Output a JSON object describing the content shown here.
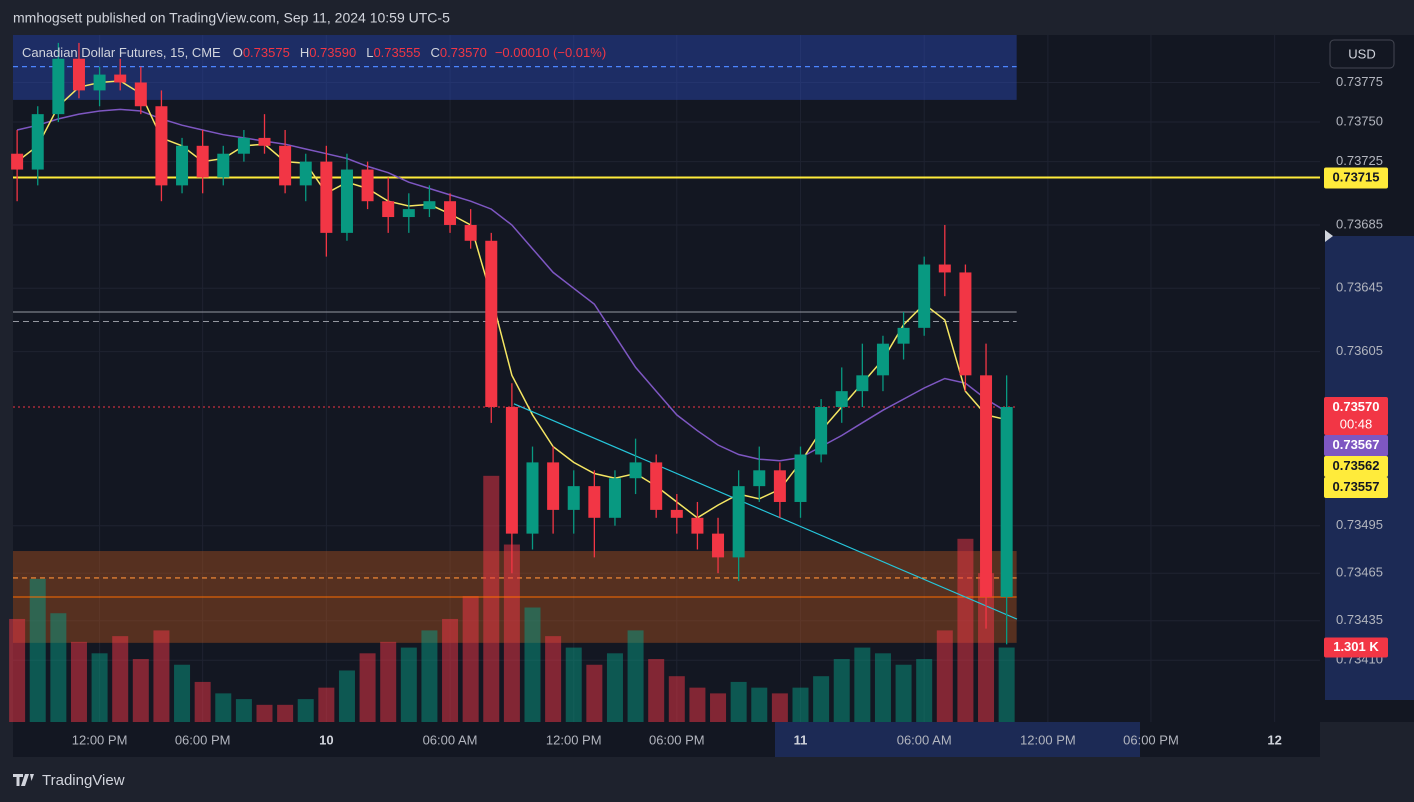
{
  "header": {
    "author_line": "mmhogsett published on TradingView.com, Sep 11, 2024 10:59 UTC-5"
  },
  "footer": {
    "brand": "TradingView"
  },
  "chart_data": {
    "type": "candlestick",
    "title": "Canadian Dollar Futures, 15, CME",
    "legend_ohlc": [
      {
        "key": "O",
        "value": "0.73575"
      },
      {
        "key": "H",
        "value": "0.73590"
      },
      {
        "key": "L",
        "value": "0.73555"
      },
      {
        "key": "C",
        "value": "0.73570"
      }
    ],
    "change": "−0.00010 (−0.01%)",
    "currency": "USD",
    "up_color": "#089981",
    "down_color": "#f23645",
    "x": [
      -4,
      -3,
      -2,
      -1,
      0,
      1,
      2,
      3,
      4,
      5,
      6,
      7,
      8,
      9,
      10,
      11,
      12,
      13,
      14,
      15,
      16,
      17,
      18,
      19,
      20,
      21,
      22,
      23,
      24,
      25,
      26,
      27,
      28,
      29,
      30,
      31,
      32,
      33,
      34,
      35,
      36,
      37,
      38,
      39,
      40,
      41,
      42,
      43,
      44
    ],
    "open": [
      0.7373,
      0.7372,
      0.73755,
      0.7379,
      0.7377,
      0.7378,
      0.73775,
      0.7376,
      0.7371,
      0.73735,
      0.73715,
      0.7373,
      0.7374,
      0.73735,
      0.7371,
      0.73725,
      0.7368,
      0.7372,
      0.737,
      0.7369,
      0.73695,
      0.737,
      0.73685,
      0.73675,
      0.7357,
      0.7349,
      0.73535,
      0.73505,
      0.7352,
      0.735,
      0.73525,
      0.73535,
      0.73505,
      0.735,
      0.7349,
      0.73475,
      0.7352,
      0.7353,
      0.7351,
      0.7354,
      0.7357,
      0.7358,
      0.7359,
      0.7361,
      0.7362,
      0.7366,
      0.73655,
      0.7359,
      0.7345
    ],
    "high": [
      0.73745,
      0.7376,
      0.738,
      0.738,
      0.73785,
      0.7379,
      0.73785,
      0.7377,
      0.7374,
      0.73745,
      0.73735,
      0.73745,
      0.73755,
      0.73745,
      0.7373,
      0.73735,
      0.7373,
      0.73725,
      0.73715,
      0.73705,
      0.7371,
      0.73705,
      0.73695,
      0.7368,
      0.73585,
      0.73545,
      0.73545,
      0.7353,
      0.7353,
      0.7353,
      0.7355,
      0.7354,
      0.73515,
      0.7351,
      0.735,
      0.7353,
      0.73545,
      0.73535,
      0.73545,
      0.73575,
      0.73595,
      0.7361,
      0.73615,
      0.7363,
      0.73665,
      0.73685,
      0.7366,
      0.7361,
      0.7359
    ],
    "low": [
      0.737,
      0.7371,
      0.7375,
      0.73765,
      0.7376,
      0.7377,
      0.73755,
      0.737,
      0.73705,
      0.73705,
      0.7371,
      0.73725,
      0.7373,
      0.73705,
      0.737,
      0.73665,
      0.73675,
      0.73695,
      0.7368,
      0.7368,
      0.7369,
      0.7368,
      0.7367,
      0.7356,
      0.73465,
      0.7348,
      0.7349,
      0.7349,
      0.73475,
      0.73495,
      0.73515,
      0.735,
      0.7349,
      0.7348,
      0.73465,
      0.7346,
      0.7351,
      0.735,
      0.735,
      0.73535,
      0.7356,
      0.7357,
      0.7358,
      0.736,
      0.73615,
      0.7364,
      0.7358,
      0.7343,
      0.7342
    ],
    "close": [
      0.7372,
      0.73755,
      0.7379,
      0.7377,
      0.7378,
      0.73775,
      0.7376,
      0.7371,
      0.73735,
      0.73715,
      0.7373,
      0.7374,
      0.73735,
      0.7371,
      0.73725,
      0.7368,
      0.7372,
      0.737,
      0.7369,
      0.73695,
      0.737,
      0.73685,
      0.73675,
      0.7357,
      0.7349,
      0.73535,
      0.73505,
      0.7352,
      0.735,
      0.73525,
      0.73535,
      0.73505,
      0.735,
      0.7349,
      0.73475,
      0.7352,
      0.7353,
      0.7351,
      0.7354,
      0.7357,
      0.7358,
      0.7359,
      0.7361,
      0.7362,
      0.7366,
      0.73655,
      0.7359,
      0.7345,
      0.7357
    ],
    "lines": [
      {
        "color": "#7e57c2",
        "values": [
          0.73745,
          0.73748,
          0.73752,
          0.73755,
          0.73757,
          0.73758,
          0.73757,
          0.73752,
          0.73748,
          0.73745,
          0.73742,
          0.7374,
          0.73738,
          0.73736,
          0.73733,
          0.7373,
          0.73727,
          0.73722,
          0.73718,
          0.73712,
          0.73708,
          0.73704,
          0.737,
          0.73695,
          0.73685,
          0.7367,
          0.73655,
          0.73645,
          0.73635,
          0.73615,
          0.73595,
          0.7358,
          0.73565,
          0.73555,
          0.73546,
          0.7354,
          0.73537,
          0.73536,
          0.73538,
          0.73545,
          0.73552,
          0.7356,
          0.73568,
          0.73575,
          0.73582,
          0.73588,
          0.73585,
          0.73575,
          0.73567
        ]
      },
      {
        "color": "#f5e663",
        "values": [
          0.73725,
          0.73735,
          0.7376,
          0.73772,
          0.73775,
          0.73776,
          0.73768,
          0.7374,
          0.73735,
          0.73725,
          0.73727,
          0.73735,
          0.73736,
          0.73725,
          0.73724,
          0.73705,
          0.73712,
          0.73708,
          0.737,
          0.73697,
          0.73698,
          0.73692,
          0.73685,
          0.7364,
          0.7359,
          0.73565,
          0.73545,
          0.73535,
          0.73528,
          0.73525,
          0.73528,
          0.7352,
          0.7351,
          0.735,
          0.73508,
          0.73515,
          0.73512,
          0.73518,
          0.73535,
          0.73555,
          0.7357,
          0.73585,
          0.736,
          0.73622,
          0.73635,
          0.73625,
          0.7358,
          0.73565,
          0.73562
        ]
      }
    ],
    "volume": [
      1.8,
      2.5,
      1.9,
      1.4,
      1.2,
      1.5,
      1.1,
      1.6,
      1.0,
      0.7,
      0.5,
      0.4,
      0.3,
      0.3,
      0.4,
      0.6,
      0.9,
      1.2,
      1.4,
      1.3,
      1.6,
      1.8,
      2.2,
      4.3,
      3.1,
      2.0,
      1.5,
      1.3,
      1.0,
      1.2,
      1.6,
      1.1,
      0.8,
      0.6,
      0.5,
      0.7,
      0.6,
      0.5,
      0.6,
      0.8,
      1.1,
      1.3,
      1.2,
      1.0,
      1.1,
      1.6,
      3.2,
      2.6,
      1.301
    ],
    "volume_label": "1.301 K",
    "vlim": [
      0,
      12
    ],
    "zones": [
      {
        "from": 0.73764,
        "to": 0.73805,
        "mid": 0.73785,
        "color": "#2a4ab8"
      },
      {
        "from": 0.73421,
        "to": 0.73479,
        "mid": 0.73462,
        "color": "#a8501e"
      }
    ],
    "levels": [
      {
        "value": 0.73715,
        "color": "#ffeb3b",
        "style": "solid"
      },
      {
        "value": 0.7363,
        "color": "#9598a1",
        "style": "solid"
      },
      {
        "value": 0.73624,
        "color": "#9598a1",
        "style": "dashed"
      },
      {
        "value": 0.7345,
        "color": "#ff6d00",
        "style": "solid"
      },
      {
        "value": 0.7357,
        "color": "#f23645",
        "style": "dotted"
      }
    ],
    "trendline": {
      "x": [
        20.1,
        44.5
      ],
      "y": [
        0.73572,
        0.73436
      ],
      "color": "#26c6da"
    },
    "price_labels": [
      {
        "value": 0.73715,
        "label": "0.73715",
        "color": "#ffeb3b",
        "text_color": "#131722"
      },
      {
        "value": 0.7357,
        "label": "0.73570",
        "color": "#f23645",
        "text_color": "#ffffff",
        "timer": "00:48"
      },
      {
        "value": 0.73567,
        "label": "0.73567",
        "color": "#7e57c2",
        "text_color": "#ffffff"
      },
      {
        "value": 0.73562,
        "label": "0.73562",
        "color": "#ffeb3b",
        "text_color": "#131722"
      },
      {
        "value": 0.73557,
        "label": "0.73557",
        "color": "#ffeb3b",
        "text_color": "#131722"
      }
    ],
    "xlim": [
      -4.2,
      59.2
    ],
    "ylim": [
      0.73371,
      0.73805
    ],
    "xticks": [
      {
        "value": 0,
        "label": "12:00 PM"
      },
      {
        "value": 5,
        "label": "06:00 PM"
      },
      {
        "value": 11,
        "label": "10"
      },
      {
        "value": 17,
        "label": "06:00 AM"
      },
      {
        "value": 23,
        "label": "12:00 PM"
      },
      {
        "value": 28,
        "label": "06:00 PM"
      },
      {
        "value": 34,
        "label": "11"
      },
      {
        "value": 40,
        "label": "06:00 AM"
      },
      {
        "value": 46,
        "label": "12:00 PM"
      },
      {
        "value": 51,
        "label": "06:00 PM"
      },
      {
        "value": 57,
        "label": "12"
      }
    ],
    "yticks": [
      0.73775,
      {
        "value": 0.7375,
        "label": "0.73750"
      },
      0.73725,
      0.73685,
      0.73645,
      0.73605,
      0.73495,
      0.73465,
      0.73435,
      {
        "value": 0.7341,
        "label": "0.73410"
      }
    ],
    "grid": true
  }
}
